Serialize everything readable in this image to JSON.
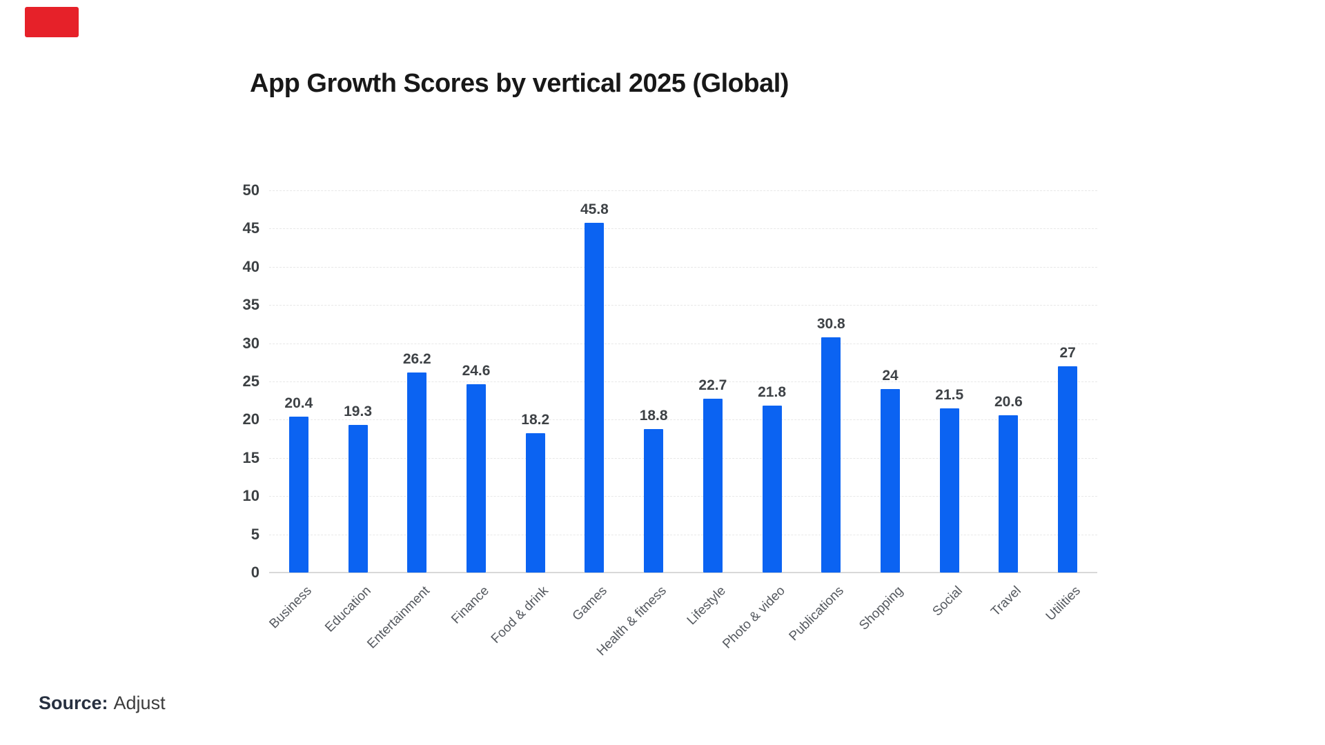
{
  "annotations": {
    "red_mark_color": "#e62129"
  },
  "chart_data": {
    "type": "bar",
    "title": "App Growth Scores by vertical 2025 (Global)",
    "categories": [
      "Business",
      "Education",
      "Entertainment",
      "Finance",
      "Food & drink",
      "Games",
      "Health & fitness",
      "Lifestyle",
      "Photo & video",
      "Publications",
      "Shopping",
      "Social",
      "Travel",
      "Utilities"
    ],
    "values": [
      20.4,
      19.3,
      26.2,
      24.6,
      18.2,
      45.8,
      18.8,
      22.7,
      21.8,
      30.8,
      24,
      21.5,
      20.6,
      27
    ],
    "xlabel": "",
    "ylabel": "",
    "ylim": [
      0,
      50
    ],
    "yticks": [
      0,
      5,
      10,
      15,
      20,
      25,
      30,
      35,
      40,
      45,
      50
    ],
    "grid": "horizontal-dashed",
    "legend": "none",
    "value_labels_shown": true,
    "bar_color": "#0b63f2",
    "tick_label_color": "#3c4043",
    "value_label_color": "#3e4246",
    "category_label_color": "#55595f"
  },
  "source": {
    "label": "Source:",
    "value": "Adjust"
  }
}
